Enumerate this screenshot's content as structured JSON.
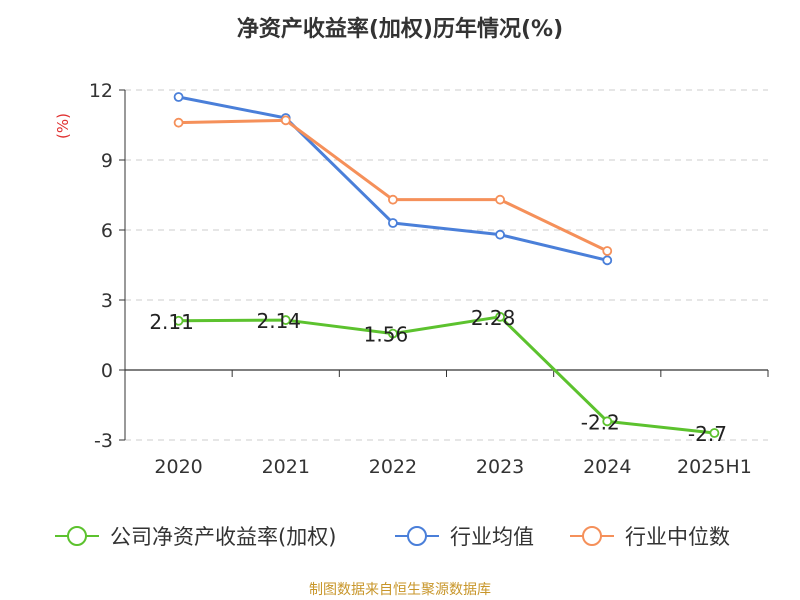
{
  "chart_data": {
    "type": "line",
    "title": "净资产收益率(加权)历年情况(%)",
    "ylabel": "(%)",
    "categories": [
      "2020",
      "2021",
      "2022",
      "2023",
      "2024",
      "2025H1"
    ],
    "yticks": [
      "12",
      "9",
      "6",
      "3",
      "0",
      "-3"
    ],
    "ylim": [
      -3,
      12
    ],
    "grid": true,
    "legend_position": "bottom",
    "series": [
      {
        "name": "公司净资产收益率(加权)",
        "color": "#5cc22e",
        "values": [
          2.11,
          2.14,
          1.56,
          2.28,
          -2.2,
          -2.7
        ],
        "labels": [
          "2.11",
          "2.14",
          "1.56",
          "2.28",
          "-2.2",
          "-2.7"
        ]
      },
      {
        "name": "行业均值",
        "color": "#4a7fd9",
        "values": [
          11.7,
          10.8,
          6.3,
          5.8,
          4.7,
          null
        ]
      },
      {
        "name": "行业中位数",
        "color": "#f5905a",
        "values": [
          10.6,
          10.7,
          7.3,
          7.3,
          5.1,
          null
        ]
      }
    ],
    "source": "制图数据来自恒生聚源数据库"
  }
}
